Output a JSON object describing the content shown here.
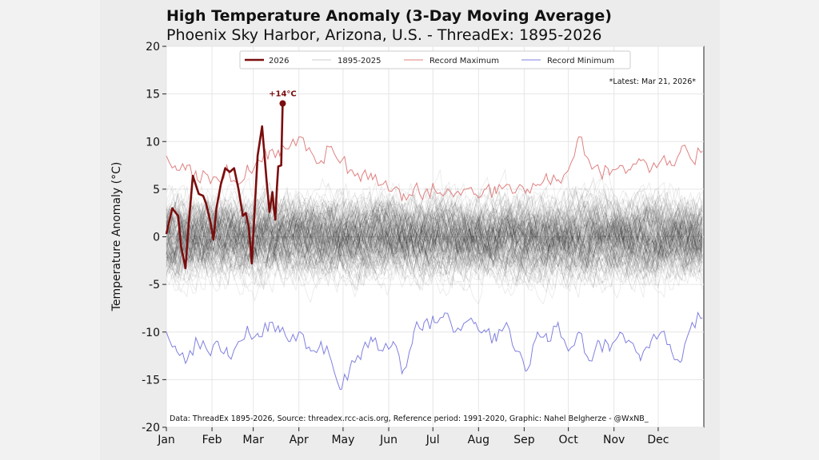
{
  "chart_data": {
    "type": "line",
    "title": "High Temperature Anomaly (3-Day Moving Average)",
    "subtitle": "Phoenix Sky Harbor, Arizona, U.S. - ThreadEx: 1895-2026",
    "ylabel": "Temperature Anomaly (°C)",
    "xlabel": "",
    "ylim": [
      -20,
      20
    ],
    "yticks": [
      "20",
      "15",
      "10",
      "5",
      "0",
      "-5",
      "-10",
      "-15",
      "-20"
    ],
    "ytick_values": [
      20,
      15,
      10,
      5,
      0,
      -5,
      -10,
      -15,
      -20
    ],
    "xticks": [
      "Jan",
      "Feb",
      "Mar",
      "Apr",
      "May",
      "Jun",
      "Jul",
      "Aug",
      "Sep",
      "Oct",
      "Nov",
      "Dec"
    ],
    "xtick_days": [
      0,
      31,
      59,
      90,
      120,
      151,
      181,
      212,
      243,
      273,
      304,
      334
    ],
    "xlim_days": [
      0,
      365
    ],
    "grid": true,
    "legend_position": "top-center",
    "legend": [
      "2026",
      "1895-2025",
      "Record Maximum",
      "Record Minimum"
    ],
    "latest_note": "*Latest: Mar 21, 2026*",
    "annotation": "+14°C",
    "source": "Data: ThreadEx 1895-2026, Source: threadex.rcc-acis.org, Reference period: 1991-2020, Graphic: Nahel Belgherze - @WxNB_",
    "colors": {
      "y2026": "#7a0d0d",
      "historical": "#000000",
      "record_max": "#e08080",
      "record_min": "#8080e0"
    },
    "series": [
      {
        "name": "2026",
        "days": [
          0,
          4,
          6,
          8,
          10,
          13,
          15,
          18,
          22,
          25,
          27,
          30,
          32,
          34,
          37,
          40,
          43,
          46,
          49,
          52,
          54,
          56,
          58,
          60,
          62,
          65,
          68,
          70,
          72,
          73,
          74,
          75,
          76,
          78,
          79
        ],
        "values": [
          0.3,
          3,
          2.6,
          2.2,
          -1,
          -3.3,
          1,
          6.4,
          4.5,
          4.3,
          3.5,
          1.5,
          -0.3,
          3,
          5.5,
          7.2,
          6.8,
          7.2,
          5,
          2.2,
          2.5,
          1,
          -2.8,
          3,
          8.5,
          11.6,
          6,
          2.6,
          4.7,
          3,
          1.8,
          5,
          7.4,
          7.5,
          14
        ]
      },
      {
        "name": "Record Maximum",
        "step_days": 7,
        "values": [
          8.5,
          7,
          7.5,
          6,
          6.5,
          6,
          7,
          5.5,
          7,
          8,
          9,
          8.5,
          9.5,
          10.5,
          9,
          8,
          9.5,
          8,
          7,
          6.5,
          6,
          5.5,
          5,
          4.5,
          5,
          4.5,
          5,
          4.5,
          4.5,
          5,
          4.5,
          5,
          4.5,
          5.5,
          5,
          5,
          5.5,
          6,
          6,
          7,
          10.5,
          8,
          7,
          6.5,
          7.5,
          7,
          8,
          7,
          8,
          7.5,
          9.5,
          8,
          9
        ]
      },
      {
        "name": "Record Minimum",
        "step_days": 7,
        "values": [
          -10,
          -12,
          -13,
          -11,
          -12,
          -11,
          -12.5,
          -11,
          -10,
          -10.5,
          -9,
          -10,
          -11,
          -10,
          -12,
          -11,
          -13,
          -16,
          -13,
          -12,
          -11,
          -12,
          -11,
          -14,
          -10,
          -9,
          -9,
          -8,
          -10,
          -9,
          -9,
          -10,
          -11,
          -9,
          -12,
          -14,
          -10,
          -11,
          -9,
          -12,
          -10,
          -13,
          -11,
          -12,
          -10,
          -11,
          -13,
          -11,
          -10,
          -12,
          -13,
          -9,
          -8.5
        ]
      },
      {
        "name": "1895-2025",
        "years": 131,
        "mean": 0,
        "spread_sd": 3.5
      }
    ]
  }
}
